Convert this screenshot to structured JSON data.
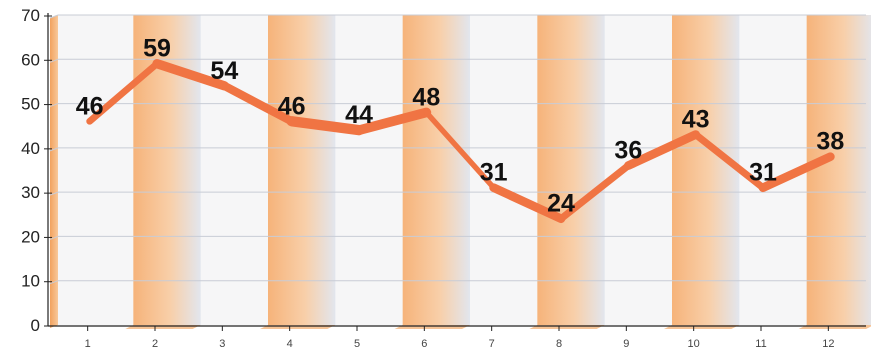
{
  "chart_data": {
    "type": "line",
    "title": "",
    "xlabel": "",
    "ylabel": "",
    "categories": [
      "1",
      "2",
      "3",
      "4",
      "5",
      "6",
      "7",
      "8",
      "9",
      "10",
      "11",
      "12"
    ],
    "values": [
      46,
      59,
      54,
      46,
      44,
      48,
      31,
      24,
      36,
      43,
      31,
      38
    ],
    "ylim": [
      0,
      70
    ],
    "yticks": [
      "0",
      "10",
      "20",
      "30",
      "40",
      "50",
      "60",
      "70"
    ],
    "grid": true,
    "legend": "none",
    "data_labels": [
      "46",
      "59",
      "54",
      "46",
      "44",
      "48",
      "31",
      "24",
      "36",
      "43",
      "31",
      "38"
    ],
    "colors": {
      "line": "#f07443",
      "band_orange": "#f6b37a",
      "band_fade": "#e4e7ee",
      "plot_background": "#f6f6f7",
      "grid": "#c8ccd6",
      "axis": "#222222"
    }
  }
}
